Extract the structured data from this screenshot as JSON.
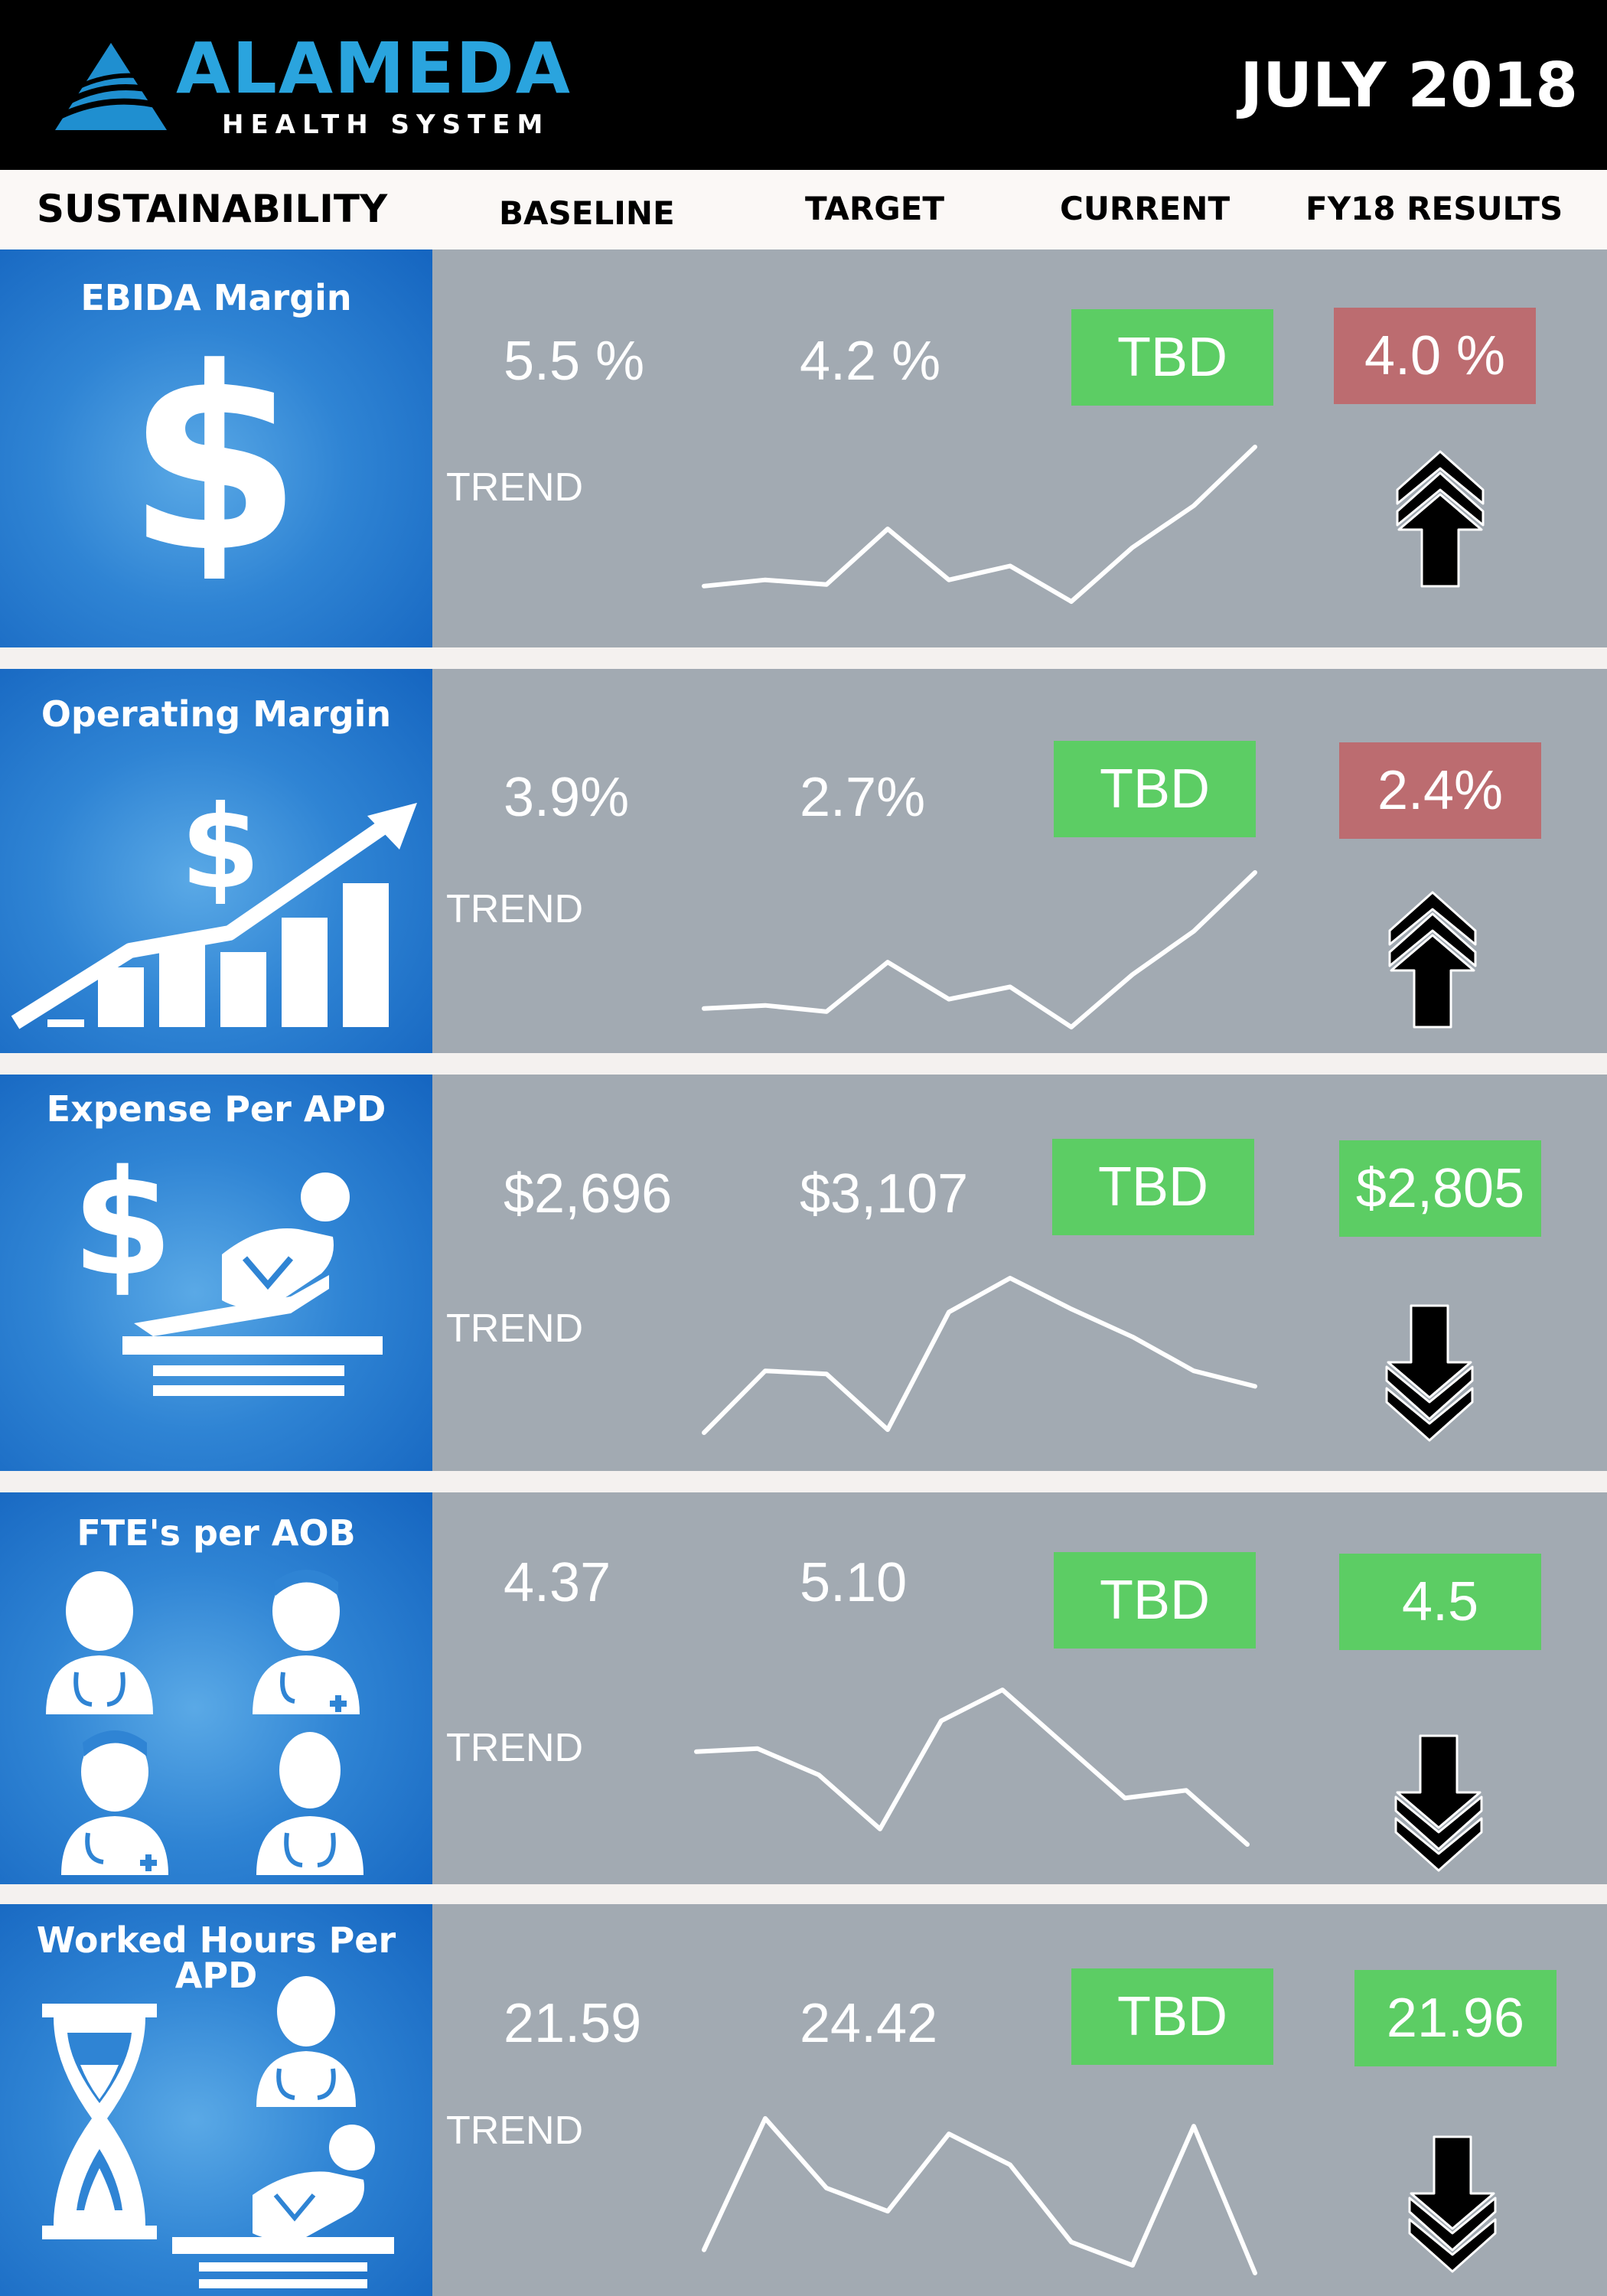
{
  "header": {
    "brand_name": "ALAMEDA",
    "brand_sub": "HEALTH SYSTEM",
    "date": "JULY 2018"
  },
  "columns": {
    "section": "SUSTAINABILITY",
    "baseline": "BASELINE",
    "target": "TARGET",
    "current": "CURRENT",
    "results": "FY18  RESULTS"
  },
  "colors": {
    "good": "#5ccd64",
    "bad": "#bc6c70",
    "icon_panel": "#2f84d4",
    "data_panel": "#a2aab2",
    "brand": "#2aa4de"
  },
  "rows": [
    {
      "title": "EBIDA Margin",
      "icon": "dollar-sign-icon",
      "baseline": "5.5 %",
      "target": "4.2 %",
      "current": "TBD",
      "result": "4.0 %",
      "result_status": "bad",
      "trend_label": "TREND",
      "trend_direction": "up",
      "trend": [
        0.1,
        0.14,
        0.11,
        0.47,
        0.14,
        0.23,
        0.0,
        0.35,
        0.62,
        1.0
      ]
    },
    {
      "title": "Operating Margin",
      "icon": "growth-chart-dollar-icon",
      "baseline": "3.9%",
      "target": "2.7%",
      "current": "TBD",
      "result": "2.4%",
      "result_status": "bad",
      "trend_label": "TREND",
      "trend_direction": "up",
      "trend": [
        0.12,
        0.14,
        0.1,
        0.42,
        0.18,
        0.26,
        0.0,
        0.34,
        0.62,
        1.0
      ]
    },
    {
      "title": "Expense Per APD",
      "icon": "dollar-patient-bed-icon",
      "baseline": "$2,696",
      "target": "$3,107",
      "current": "TBD",
      "result": "$2,805",
      "result_status": "good",
      "trend_label": "TREND",
      "trend_direction": "down",
      "trend": [
        0.0,
        0.4,
        0.38,
        0.02,
        0.78,
        1.0,
        0.8,
        0.62,
        0.4,
        0.3
      ]
    },
    {
      "title": "FTE's per AOB",
      "icon": "medical-staff-icon",
      "baseline": "4.37",
      "target": "5.10",
      "current": "TBD",
      "result": "4.5",
      "result_status": "good",
      "trend_label": "TREND",
      "trend_direction": "down",
      "trend": [
        0.6,
        0.62,
        0.45,
        0.1,
        0.8,
        1.0,
        0.65,
        0.3,
        0.35,
        0.0
      ]
    },
    {
      "title": "Worked Hours Per APD",
      "icon": "hourglass-staff-bed-icon",
      "baseline": "21.59",
      "target": "24.42",
      "current": "TBD",
      "result": "21.96",
      "result_status": "good",
      "trend_label": "TREND",
      "trend_direction": "down",
      "trend": [
        0.15,
        1.0,
        0.55,
        0.4,
        0.9,
        0.7,
        0.2,
        0.05,
        0.95,
        0.0
      ]
    }
  ]
}
